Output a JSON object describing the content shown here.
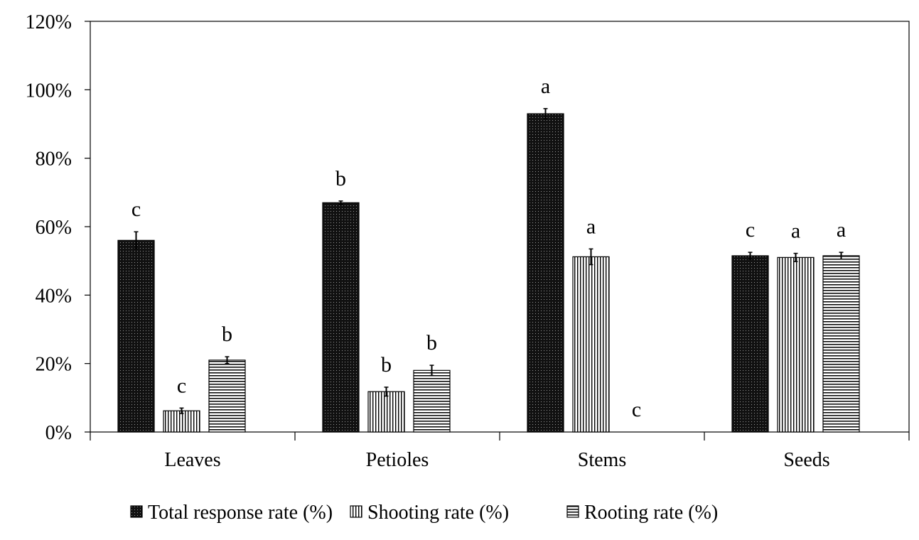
{
  "chart_data": {
    "type": "bar",
    "title": "",
    "xlabel": "",
    "ylabel": "",
    "categories": [
      "Leaves",
      "Petioles",
      "Stems",
      "Seeds"
    ],
    "ylim": [
      0,
      120
    ],
    "yticks": [
      0,
      20,
      40,
      60,
      80,
      100,
      120
    ],
    "ytick_labels": [
      "0%",
      "20%",
      "40%",
      "60%",
      "80%",
      "100%",
      "120%"
    ],
    "grid": false,
    "legend_position": "bottom",
    "series": [
      {
        "name": "Total response rate (%)",
        "pattern": "dots",
        "fill_color": "#111111",
        "values": [
          56,
          67,
          93,
          51.5
        ],
        "errors": [
          2.5,
          0.5,
          1.5,
          1
        ],
        "significance": [
          "c",
          "b",
          "a",
          "c"
        ]
      },
      {
        "name": "Shooting rate (%)",
        "pattern": "vertical-lines",
        "fill_color": "#ffffff",
        "values": [
          6.2,
          11.8,
          51.2,
          51
        ],
        "errors": [
          0.8,
          1.3,
          2.3,
          1.2
        ],
        "significance": [
          "c",
          "b",
          "a",
          "a"
        ]
      },
      {
        "name": "Rooting rate (%)",
        "pattern": "horizontal-lines",
        "fill_color": "#ffffff",
        "values": [
          21,
          18,
          0,
          51.5
        ],
        "errors": [
          1,
          1.5,
          0,
          1
        ],
        "significance": [
          "b",
          "b",
          "c",
          "a"
        ]
      }
    ]
  }
}
